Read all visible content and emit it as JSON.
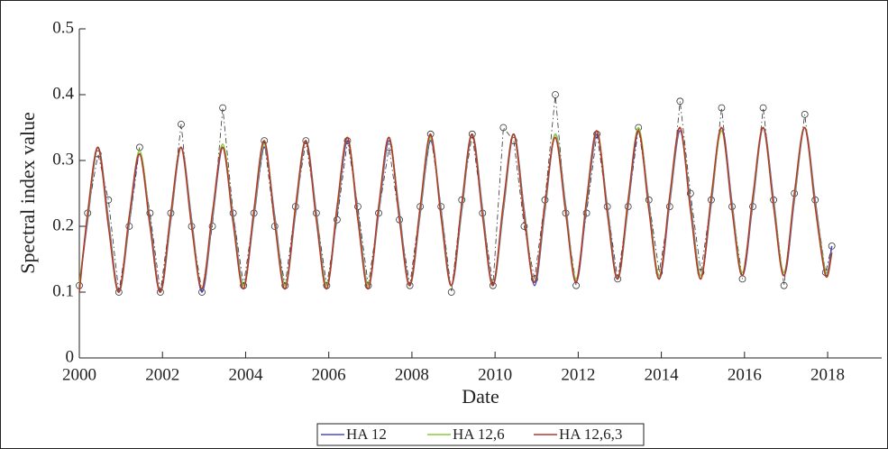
{
  "chart_data": {
    "type": "line",
    "xlabel": "Date",
    "ylabel": "Spectral index value",
    "xlim": [
      2000,
      2019.3
    ],
    "ylim": [
      0,
      0.5
    ],
    "xticks": [
      2000,
      2002,
      2004,
      2006,
      2008,
      2010,
      2012,
      2014,
      2016,
      2018
    ],
    "yticks": [
      0,
      0.1,
      0.2,
      0.3,
      0.4,
      0.5
    ],
    "grid": false,
    "legend": "bottom",
    "x": [
      2000,
      2000.2,
      2000.45,
      2000.7,
      2000.95,
      2001.2,
      2001.45,
      2001.7,
      2001.95,
      2002.2,
      2002.45,
      2002.7,
      2002.95,
      2003.2,
      2003.45,
      2003.7,
      2003.95,
      2004.2,
      2004.45,
      2004.7,
      2004.95,
      2005.2,
      2005.45,
      2005.7,
      2005.95,
      2006.2,
      2006.45,
      2006.7,
      2006.95,
      2007.2,
      2007.45,
      2007.7,
      2007.95,
      2008.2,
      2008.45,
      2008.7,
      2008.95,
      2009.2,
      2009.45,
      2009.7,
      2009.95,
      2010.2,
      2010.45,
      2010.7,
      2010.95,
      2011.2,
      2011.45,
      2011.7,
      2011.95,
      2012.2,
      2012.45,
      2012.7,
      2012.95,
      2013.2,
      2013.45,
      2013.7,
      2013.95,
      2014.2,
      2014.45,
      2014.7,
      2014.95,
      2015.2,
      2015.45,
      2015.7,
      2015.95,
      2016.2,
      2016.45,
      2016.7,
      2016.95,
      2017.2,
      2017.45,
      2017.7,
      2017.95,
      2018.1
    ],
    "series": [
      {
        "color": "#333333",
        "marker": "circle",
        "dash": "dashdot",
        "values": [
          0.11,
          0.22,
          0.31,
          0.24,
          0.1,
          0.2,
          0.32,
          0.22,
          0.1,
          0.22,
          0.355,
          0.2,
          0.1,
          0.2,
          0.38,
          0.22,
          0.11,
          0.22,
          0.33,
          0.2,
          0.11,
          0.23,
          0.33,
          0.22,
          0.11,
          0.21,
          0.33,
          0.23,
          0.11,
          0.22,
          0.32,
          0.21,
          0.11,
          0.23,
          0.34,
          0.23,
          0.1,
          0.24,
          0.34,
          0.22,
          0.11,
          0.35,
          0.33,
          0.2,
          0.12,
          0.24,
          0.4,
          0.22,
          0.11,
          0.22,
          0.34,
          0.23,
          0.12,
          0.23,
          0.35,
          0.24,
          0.13,
          0.23,
          0.39,
          0.25,
          0.13,
          0.24,
          0.38,
          0.23,
          0.12,
          0.23,
          0.38,
          0.24,
          0.11,
          0.25,
          0.37,
          0.24,
          0.13,
          0.17
        ]
      },
      {
        "name": "HA 12",
        "color": "#4a4ac8",
        "values": [
          0.11,
          0.21,
          0.32,
          0.21,
          0.1,
          0.205,
          0.31,
          0.21,
          0.1,
          0.21,
          0.32,
          0.21,
          0.1,
          0.21,
          0.32,
          0.215,
          0.11,
          0.215,
          0.32,
          0.215,
          0.11,
          0.22,
          0.33,
          0.22,
          0.11,
          0.22,
          0.33,
          0.22,
          0.11,
          0.22,
          0.33,
          0.22,
          0.11,
          0.22,
          0.33,
          0.225,
          0.11,
          0.225,
          0.34,
          0.225,
          0.11,
          0.225,
          0.34,
          0.225,
          0.11,
          0.225,
          0.34,
          0.23,
          0.115,
          0.23,
          0.34,
          0.23,
          0.12,
          0.23,
          0.345,
          0.235,
          0.12,
          0.235,
          0.345,
          0.235,
          0.125,
          0.235,
          0.35,
          0.235,
          0.125,
          0.235,
          0.35,
          0.24,
          0.125,
          0.24,
          0.35,
          0.24,
          0.13,
          0.17
        ]
      },
      {
        "name": "HA 12,6",
        "color": "#8ccc3c",
        "values": [
          0.11,
          0.215,
          0.32,
          0.205,
          0.1,
          0.21,
          0.315,
          0.205,
          0.1,
          0.215,
          0.32,
          0.205,
          0.105,
          0.215,
          0.325,
          0.21,
          0.11,
          0.22,
          0.325,
          0.21,
          0.11,
          0.225,
          0.33,
          0.215,
          0.11,
          0.225,
          0.335,
          0.215,
          0.11,
          0.225,
          0.335,
          0.215,
          0.11,
          0.225,
          0.335,
          0.22,
          0.11,
          0.23,
          0.34,
          0.22,
          0.11,
          0.23,
          0.34,
          0.22,
          0.115,
          0.23,
          0.34,
          0.225,
          0.12,
          0.235,
          0.345,
          0.225,
          0.12,
          0.235,
          0.35,
          0.23,
          0.125,
          0.24,
          0.35,
          0.23,
          0.125,
          0.24,
          0.345,
          0.23,
          0.13,
          0.24,
          0.35,
          0.235,
          0.13,
          0.245,
          0.35,
          0.235,
          0.13,
          0.16
        ]
      },
      {
        "name": "HA 12,6,3",
        "color": "#b03a2e",
        "values": [
          0.1,
          0.22,
          0.32,
          0.2,
          0.1,
          0.215,
          0.31,
          0.2,
          0.1,
          0.22,
          0.32,
          0.2,
          0.105,
          0.22,
          0.32,
          0.205,
          0.105,
          0.225,
          0.33,
          0.205,
          0.105,
          0.23,
          0.33,
          0.21,
          0.105,
          0.23,
          0.335,
          0.21,
          0.105,
          0.23,
          0.335,
          0.21,
          0.11,
          0.23,
          0.34,
          0.215,
          0.11,
          0.235,
          0.34,
          0.215,
          0.11,
          0.235,
          0.34,
          0.215,
          0.115,
          0.235,
          0.335,
          0.22,
          0.115,
          0.24,
          0.345,
          0.22,
          0.12,
          0.24,
          0.345,
          0.225,
          0.12,
          0.245,
          0.35,
          0.225,
          0.12,
          0.245,
          0.35,
          0.225,
          0.125,
          0.245,
          0.35,
          0.23,
          0.125,
          0.25,
          0.35,
          0.23,
          0.125,
          0.16
        ]
      }
    ]
  }
}
